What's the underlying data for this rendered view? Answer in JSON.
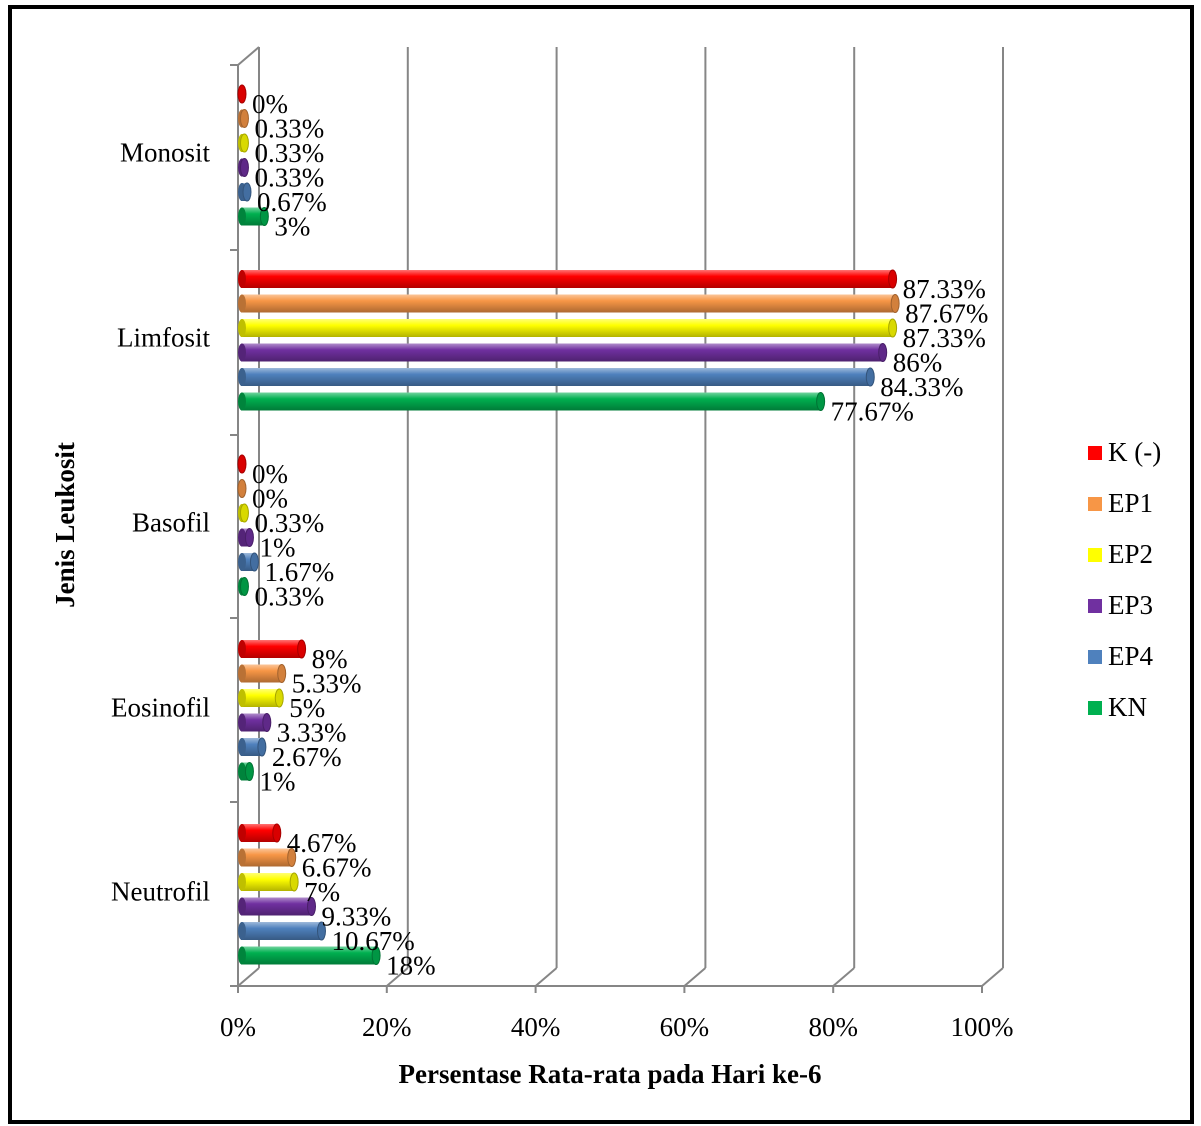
{
  "chart_data": {
    "type": "bar",
    "orientation": "horizontal",
    "categories": [
      "Monosit",
      "Limfosit",
      "Basofil",
      "Eosinofil",
      "Neutrofil"
    ],
    "series": [
      {
        "name": "K (-)",
        "color": "#ff0000",
        "values": [
          0,
          87.33,
          0,
          8,
          4.67
        ],
        "labels": [
          "0%",
          "87.33%",
          "0%",
          "8%",
          "4.67%"
        ]
      },
      {
        "name": "EP1",
        "color": "#f79646",
        "values": [
          0.33,
          87.67,
          0,
          5.33,
          6.67
        ],
        "labels": [
          "0.33%",
          "87.67%",
          "0%",
          "5.33%",
          "6.67%"
        ]
      },
      {
        "name": "EP2",
        "color": "#ffff00",
        "values": [
          0.33,
          87.33,
          0.33,
          5,
          7
        ],
        "labels": [
          "0.33%",
          "87.33%",
          "0.33%",
          "5%",
          "7%"
        ]
      },
      {
        "name": "EP3",
        "color": "#7030a0",
        "values": [
          0.33,
          86,
          1,
          3.33,
          9.33
        ],
        "labels": [
          "0.33%",
          "86%",
          "1%",
          "3.33%",
          "9.33%"
        ]
      },
      {
        "name": "EP4",
        "color": "#4f81bd",
        "values": [
          0.67,
          84.33,
          1.67,
          2.67,
          10.67
        ],
        "labels": [
          "0.67%",
          "84.33%",
          "1.67%",
          "2.67%",
          "10.67%"
        ]
      },
      {
        "name": "KN",
        "color": "#00b050",
        "values": [
          3,
          77.67,
          0.33,
          1,
          18
        ],
        "labels": [
          "3%",
          "77.67%",
          "0.33%",
          "1%",
          "18%"
        ]
      }
    ],
    "xlabel": "Persentase Rata-rata pada Hari ke-6",
    "ylabel": "Jenis Leukosit",
    "xlim": [
      0,
      100
    ],
    "xticks": [
      "0%",
      "20%",
      "40%",
      "60%",
      "80%",
      "100%"
    ],
    "grid": true,
    "legend_position": "right"
  }
}
